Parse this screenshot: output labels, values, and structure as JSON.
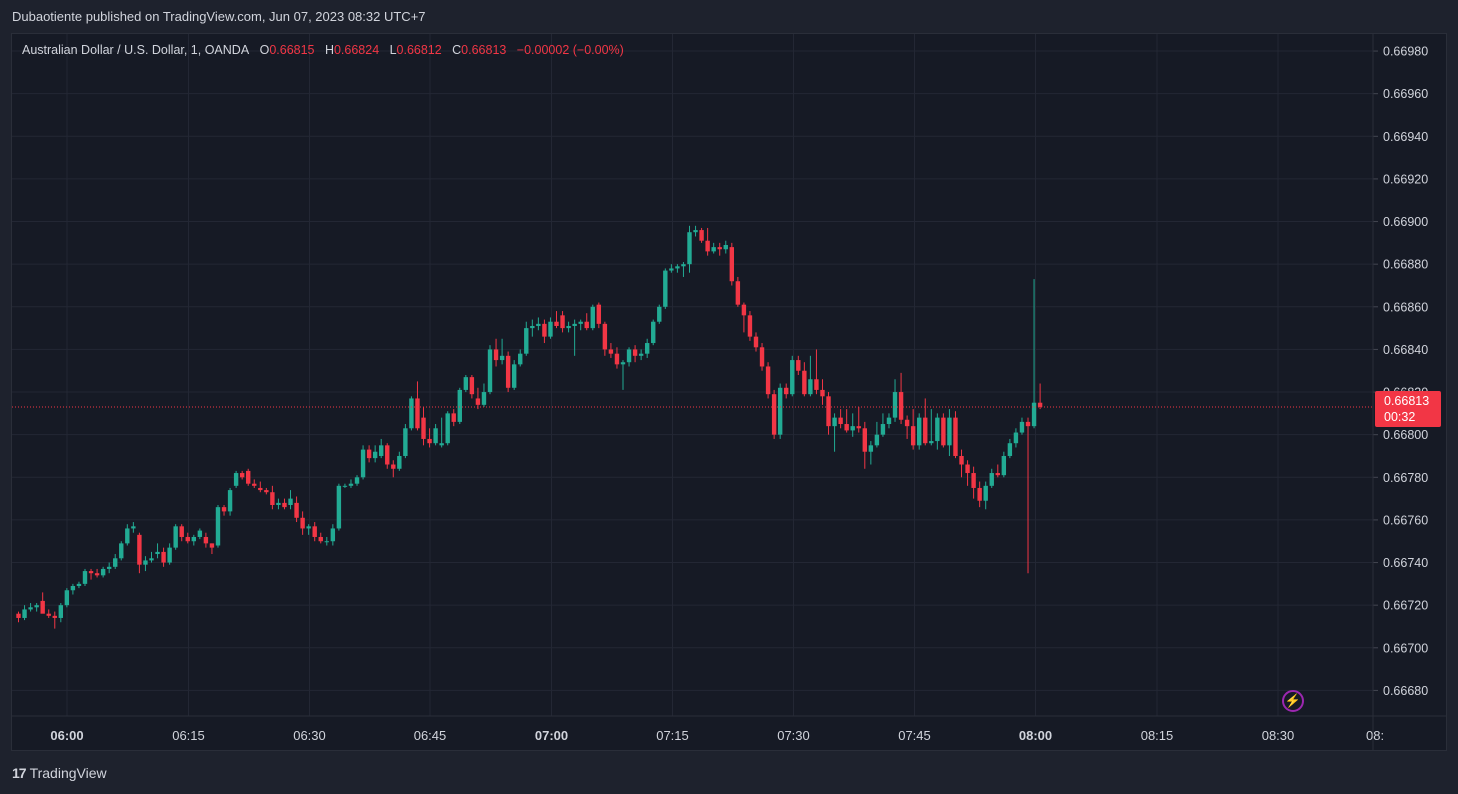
{
  "header": {
    "publisher_line": "Dubaotiente published on TradingView.com, Jun 07, 2023 08:32 UTC+7"
  },
  "legend": {
    "symbol": "Australian Dollar / U.S. Dollar, 1, OANDA",
    "o_label": "O",
    "o_value": "0.66815",
    "h_label": "H",
    "h_value": "0.66824",
    "l_label": "L",
    "l_value": "0.66812",
    "c_label": "C",
    "c_value": "0.66813",
    "change": "−0.00002 (−0.00%)"
  },
  "price_tag": {
    "price": "0.66813",
    "countdown": "00:32"
  },
  "brand": {
    "logo_glyph": "17",
    "name": "TradingView"
  },
  "icons": {
    "bolt": "lightning-icon"
  },
  "colors": {
    "up": "#22ab94",
    "down": "#f23645",
    "background": "#161a25",
    "grid": "#232734",
    "text": "#d1d4dc"
  },
  "chart_data": {
    "type": "candlestick",
    "title": "Australian Dollar / U.S. Dollar, 1, OANDA",
    "interval_minutes": 1,
    "x_ticks": [
      "06:00",
      "06:15",
      "06:30",
      "06:45",
      "07:00",
      "07:15",
      "07:30",
      "07:45",
      "08:00",
      "08:15",
      "08:30",
      "08:"
    ],
    "x_ticks_bold": [
      "06:00",
      "07:00",
      "08:00"
    ],
    "y_ticks": [
      "0.66980",
      "0.66960",
      "0.66940",
      "0.66920",
      "0.66900",
      "0.66880",
      "0.66860",
      "0.66840",
      "0.66820",
      "0.66800",
      "0.66780",
      "0.66760",
      "0.66740",
      "0.66720",
      "0.66700",
      "0.66680"
    ],
    "ylim": [
      0.66668,
      0.66988
    ],
    "last_price": 0.66813,
    "grid": true,
    "candles": [
      [
        0.66716,
        0.66717,
        0.66712,
        0.66714
      ],
      [
        0.66714,
        0.6672,
        0.66713,
        0.66718
      ],
      [
        0.66718,
        0.66721,
        0.66717,
        0.66719
      ],
      [
        0.66719,
        0.66721,
        0.66717,
        0.6672
      ],
      [
        0.66722,
        0.66726,
        0.66718,
        0.66716
      ],
      [
        0.66716,
        0.66718,
        0.66714,
        0.66715
      ],
      [
        0.66715,
        0.66717,
        0.66709,
        0.66714
      ],
      [
        0.66714,
        0.66721,
        0.66712,
        0.6672
      ],
      [
        0.6672,
        0.66728,
        0.66719,
        0.66727
      ],
      [
        0.66727,
        0.6673,
        0.66725,
        0.66729
      ],
      [
        0.66729,
        0.66731,
        0.66728,
        0.6673
      ],
      [
        0.6673,
        0.66737,
        0.66729,
        0.66736
      ],
      [
        0.66736,
        0.66737,
        0.66732,
        0.66735
      ],
      [
        0.66735,
        0.66737,
        0.66733,
        0.66734
      ],
      [
        0.66734,
        0.66738,
        0.66733,
        0.66737
      ],
      [
        0.66737,
        0.6674,
        0.66735,
        0.66738
      ],
      [
        0.66738,
        0.66744,
        0.66737,
        0.66742
      ],
      [
        0.66742,
        0.6675,
        0.66741,
        0.66749
      ],
      [
        0.66749,
        0.66758,
        0.66748,
        0.66756
      ],
      [
        0.66756,
        0.66759,
        0.66754,
        0.66757
      ],
      [
        0.66753,
        0.66754,
        0.66735,
        0.66739
      ],
      [
        0.66739,
        0.66743,
        0.66736,
        0.66741
      ],
      [
        0.66741,
        0.66745,
        0.6674,
        0.66742
      ],
      [
        0.66744,
        0.66749,
        0.66742,
        0.66745
      ],
      [
        0.66745,
        0.66747,
        0.66738,
        0.6674
      ],
      [
        0.6674,
        0.66749,
        0.66739,
        0.66747
      ],
      [
        0.66747,
        0.66758,
        0.66746,
        0.66757
      ],
      [
        0.66757,
        0.66758,
        0.6675,
        0.66752
      ],
      [
        0.66752,
        0.66754,
        0.66749,
        0.6675
      ],
      [
        0.6675,
        0.66753,
        0.66748,
        0.66752
      ],
      [
        0.66752,
        0.66756,
        0.66751,
        0.66755
      ],
      [
        0.66752,
        0.66754,
        0.66747,
        0.66749
      ],
      [
        0.66749,
        0.66749,
        0.66744,
        0.66747
      ],
      [
        0.66748,
        0.66767,
        0.66747,
        0.66766
      ],
      [
        0.66766,
        0.66767,
        0.66762,
        0.66764
      ],
      [
        0.66764,
        0.66775,
        0.66762,
        0.66774
      ],
      [
        0.66776,
        0.66783,
        0.66775,
        0.66782
      ],
      [
        0.66782,
        0.66783,
        0.66779,
        0.6678
      ],
      [
        0.66783,
        0.66784,
        0.66776,
        0.66777
      ],
      [
        0.66777,
        0.66779,
        0.66775,
        0.66776
      ],
      [
        0.66775,
        0.66778,
        0.66773,
        0.66774
      ],
      [
        0.66774,
        0.66775,
        0.66772,
        0.66773
      ],
      [
        0.66773,
        0.66776,
        0.66765,
        0.66767
      ],
      [
        0.66767,
        0.6677,
        0.66765,
        0.66768
      ],
      [
        0.66768,
        0.6677,
        0.66765,
        0.66766
      ],
      [
        0.66767,
        0.66774,
        0.66765,
        0.6677
      ],
      [
        0.66768,
        0.66771,
        0.66759,
        0.66761
      ],
      [
        0.66761,
        0.66764,
        0.66753,
        0.66756
      ],
      [
        0.66756,
        0.66758,
        0.66753,
        0.66757
      ],
      [
        0.66757,
        0.66759,
        0.6675,
        0.66752
      ],
      [
        0.66752,
        0.66754,
        0.66749,
        0.6675
      ],
      [
        0.6675,
        0.66752,
        0.66748,
        0.6675
      ],
      [
        0.6675,
        0.66758,
        0.66748,
        0.66756
      ],
      [
        0.66756,
        0.66777,
        0.66755,
        0.66776
      ],
      [
        0.66776,
        0.66777,
        0.66775,
        0.66776
      ],
      [
        0.66776,
        0.66779,
        0.66775,
        0.66777
      ],
      [
        0.66777,
        0.66781,
        0.66776,
        0.6678
      ],
      [
        0.6678,
        0.66795,
        0.66779,
        0.66793
      ],
      [
        0.66793,
        0.66795,
        0.66787,
        0.66789
      ],
      [
        0.66789,
        0.66795,
        0.66787,
        0.66792
      ],
      [
        0.6679,
        0.66798,
        0.66789,
        0.66795
      ],
      [
        0.66795,
        0.66796,
        0.66784,
        0.66786
      ],
      [
        0.66786,
        0.66788,
        0.6678,
        0.66784
      ],
      [
        0.66784,
        0.66792,
        0.66783,
        0.6679
      ],
      [
        0.6679,
        0.66805,
        0.66789,
        0.66803
      ],
      [
        0.66803,
        0.66818,
        0.66802,
        0.66817
      ],
      [
        0.66817,
        0.66825,
        0.66802,
        0.66803
      ],
      [
        0.66808,
        0.66813,
        0.66795,
        0.66798
      ],
      [
        0.66798,
        0.66803,
        0.66794,
        0.66796
      ],
      [
        0.66796,
        0.66805,
        0.66795,
        0.66803
      ],
      [
        0.66795,
        0.66808,
        0.66794,
        0.66796
      ],
      [
        0.66796,
        0.66811,
        0.66795,
        0.6681
      ],
      [
        0.6681,
        0.66812,
        0.66804,
        0.66806
      ],
      [
        0.66806,
        0.66822,
        0.66805,
        0.66821
      ],
      [
        0.66821,
        0.66828,
        0.6682,
        0.66827
      ],
      [
        0.66827,
        0.66828,
        0.66817,
        0.66819
      ],
      [
        0.66817,
        0.66822,
        0.66812,
        0.66814
      ],
      [
        0.66814,
        0.66824,
        0.66813,
        0.6682
      ],
      [
        0.6682,
        0.66842,
        0.66819,
        0.6684
      ],
      [
        0.6684,
        0.66845,
        0.66832,
        0.66835
      ],
      [
        0.66835,
        0.66845,
        0.66833,
        0.66837
      ],
      [
        0.66837,
        0.66839,
        0.6682,
        0.66822
      ],
      [
        0.66822,
        0.66835,
        0.66821,
        0.66833
      ],
      [
        0.66833,
        0.6684,
        0.66832,
        0.66838
      ],
      [
        0.66838,
        0.66853,
        0.66837,
        0.6685
      ],
      [
        0.6685,
        0.66854,
        0.66846,
        0.66851
      ],
      [
        0.66851,
        0.66855,
        0.66849,
        0.66852
      ],
      [
        0.66852,
        0.66854,
        0.66843,
        0.66846
      ],
      [
        0.66846,
        0.66855,
        0.66845,
        0.66853
      ],
      [
        0.66853,
        0.66858,
        0.6685,
        0.66851
      ],
      [
        0.66856,
        0.66858,
        0.66848,
        0.6685
      ],
      [
        0.6685,
        0.66853,
        0.66848,
        0.66851
      ],
      [
        0.66851,
        0.66854,
        0.66837,
        0.66852
      ],
      [
        0.66852,
        0.66854,
        0.66849,
        0.66853
      ],
      [
        0.66853,
        0.66857,
        0.66849,
        0.6685
      ],
      [
        0.6685,
        0.66861,
        0.66849,
        0.6686
      ],
      [
        0.66861,
        0.66862,
        0.6685,
        0.66852
      ],
      [
        0.66852,
        0.66853,
        0.66837,
        0.6684
      ],
      [
        0.6684,
        0.66843,
        0.66836,
        0.66838
      ],
      [
        0.66838,
        0.66841,
        0.66831,
        0.66833
      ],
      [
        0.66833,
        0.66835,
        0.66821,
        0.66834
      ],
      [
        0.66834,
        0.66841,
        0.66832,
        0.6684
      ],
      [
        0.6684,
        0.66842,
        0.66834,
        0.66837
      ],
      [
        0.66837,
        0.6684,
        0.66835,
        0.66838
      ],
      [
        0.66838,
        0.66845,
        0.66836,
        0.66843
      ],
      [
        0.66843,
        0.66854,
        0.66842,
        0.66853
      ],
      [
        0.66853,
        0.66861,
        0.66852,
        0.6686
      ],
      [
        0.6686,
        0.66878,
        0.66859,
        0.66877
      ],
      [
        0.66877,
        0.6688,
        0.66876,
        0.66878
      ],
      [
        0.66878,
        0.6688,
        0.66876,
        0.66879
      ],
      [
        0.66879,
        0.66881,
        0.66874,
        0.6688
      ],
      [
        0.6688,
        0.66898,
        0.66876,
        0.66895
      ],
      [
        0.66895,
        0.66898,
        0.66893,
        0.66896
      ],
      [
        0.66896,
        0.66897,
        0.6689,
        0.66891
      ],
      [
        0.66891,
        0.66897,
        0.66884,
        0.66886
      ],
      [
        0.66886,
        0.6689,
        0.66885,
        0.66888
      ],
      [
        0.66888,
        0.6689,
        0.66884,
        0.66887
      ],
      [
        0.66887,
        0.66891,
        0.66885,
        0.66889
      ],
      [
        0.66888,
        0.6689,
        0.6687,
        0.66872
      ],
      [
        0.66872,
        0.66874,
        0.6686,
        0.66861
      ],
      [
        0.66861,
        0.66862,
        0.66848,
        0.66856
      ],
      [
        0.66856,
        0.66858,
        0.66844,
        0.66846
      ],
      [
        0.66846,
        0.66848,
        0.66839,
        0.66841
      ],
      [
        0.66841,
        0.66843,
        0.6683,
        0.66832
      ],
      [
        0.66832,
        0.66834,
        0.66817,
        0.66819
      ],
      [
        0.66819,
        0.66821,
        0.66798,
        0.668
      ],
      [
        0.668,
        0.66824,
        0.66798,
        0.66822
      ],
      [
        0.66822,
        0.66824,
        0.66817,
        0.66819
      ],
      [
        0.66819,
        0.66837,
        0.66818,
        0.66835
      ],
      [
        0.66835,
        0.66837,
        0.66828,
        0.6683
      ],
      [
        0.6683,
        0.66834,
        0.66818,
        0.66819
      ],
      [
        0.66819,
        0.66837,
        0.66818,
        0.66826
      ],
      [
        0.66826,
        0.6684,
        0.66819,
        0.66821
      ],
      [
        0.66821,
        0.66826,
        0.66814,
        0.66818
      ],
      [
        0.66818,
        0.6682,
        0.668,
        0.66804
      ],
      [
        0.66804,
        0.6681,
        0.66792,
        0.66808
      ],
      [
        0.66808,
        0.66812,
        0.66803,
        0.66805
      ],
      [
        0.66805,
        0.66812,
        0.66801,
        0.66802
      ],
      [
        0.66802,
        0.6681,
        0.66799,
        0.66804
      ],
      [
        0.66804,
        0.66813,
        0.66801,
        0.66803
      ],
      [
        0.66803,
        0.66806,
        0.66784,
        0.66792
      ],
      [
        0.66792,
        0.66797,
        0.66786,
        0.66795
      ],
      [
        0.66795,
        0.66806,
        0.66794,
        0.668
      ],
      [
        0.668,
        0.6681,
        0.66799,
        0.66805
      ],
      [
        0.66805,
        0.6681,
        0.66803,
        0.66808
      ],
      [
        0.66808,
        0.66826,
        0.66806,
        0.6682
      ],
      [
        0.6682,
        0.66829,
        0.66805,
        0.66807
      ],
      [
        0.66807,
        0.66809,
        0.66798,
        0.66804
      ],
      [
        0.66804,
        0.66812,
        0.66793,
        0.66795
      ],
      [
        0.66795,
        0.6681,
        0.66793,
        0.66808
      ],
      [
        0.66808,
        0.66817,
        0.66795,
        0.66796
      ],
      [
        0.66796,
        0.66812,
        0.66795,
        0.66797
      ],
      [
        0.66797,
        0.6681,
        0.66793,
        0.66808
      ],
      [
        0.66808,
        0.6681,
        0.66794,
        0.66795
      ],
      [
        0.66795,
        0.66812,
        0.6679,
        0.66808
      ],
      [
        0.66808,
        0.66811,
        0.66789,
        0.6679
      ],
      [
        0.6679,
        0.66793,
        0.6678,
        0.66786
      ],
      [
        0.66786,
        0.66788,
        0.66776,
        0.66782
      ],
      [
        0.66782,
        0.66785,
        0.6677,
        0.66775
      ],
      [
        0.66775,
        0.66778,
        0.66766,
        0.66769
      ],
      [
        0.66769,
        0.66778,
        0.66765,
        0.66776
      ],
      [
        0.66776,
        0.66784,
        0.66775,
        0.66782
      ],
      [
        0.66782,
        0.66786,
        0.6678,
        0.66781
      ],
      [
        0.66781,
        0.66792,
        0.6678,
        0.6679
      ],
      [
        0.6679,
        0.66798,
        0.66789,
        0.66796
      ],
      [
        0.66796,
        0.66803,
        0.66794,
        0.66801
      ],
      [
        0.66801,
        0.66808,
        0.668,
        0.66806
      ],
      [
        0.66806,
        0.66808,
        0.66735,
        0.66804
      ],
      [
        0.66804,
        0.66873,
        0.66803,
        0.66815
      ],
      [
        0.66815,
        0.66824,
        0.66812,
        0.66813
      ]
    ]
  }
}
